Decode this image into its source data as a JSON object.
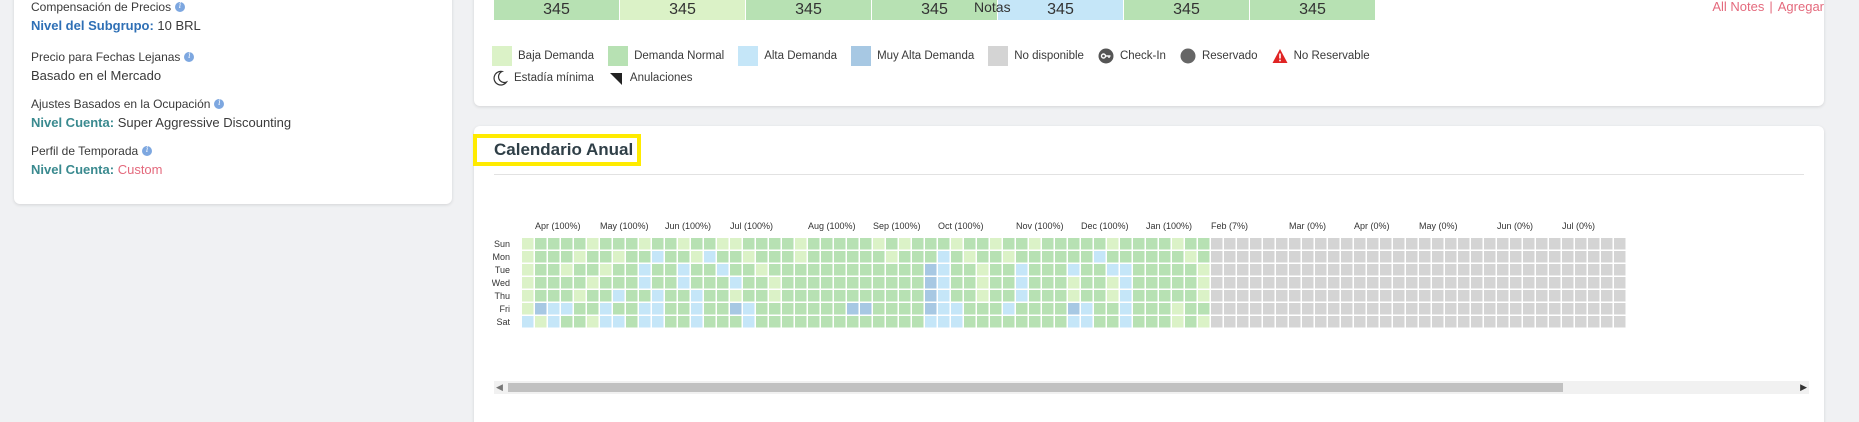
{
  "settings": {
    "comp": {
      "title": "Compensación de Precios",
      "level": "Nivel del Subgrupo:",
      "value": "10 BRL"
    },
    "far": {
      "title": "Precio para Fechas Lejanas",
      "value": "Basado en el Mercado"
    },
    "occ": {
      "title": "Ajustes Basados en la Ocupación",
      "level": "Nivel Cuenta:",
      "value": "Super Aggressive Discounting"
    },
    "season": {
      "title": "Perfil de Temporada",
      "level": "Nivel Cuenta:",
      "value": "Custom"
    }
  },
  "colors": {
    "low": "#dbf2c7",
    "normal": "#b7e1b3",
    "high": "#c5e6f8",
    "very_high": "#a7c8e3",
    "unavailable": "#d4d4d4",
    "accent_pink": "#e46a7d",
    "title_highlight": "#ffeb00"
  },
  "top_grid": {
    "values": [
      "345",
      "345",
      "345",
      "345",
      "345",
      "345",
      "345"
    ],
    "levels": [
      "normal",
      "low",
      "normal",
      "normal",
      "high",
      "normal",
      "normal"
    ]
  },
  "notes": {
    "label": "Notas",
    "all_link": "All Notes",
    "separator": "|",
    "add_link": "Agregar"
  },
  "legend": {
    "low": "Baja Demanda",
    "normal": "Demanda Normal",
    "high": "Alta Demanda",
    "very_high": "Muy Alta Demanda",
    "unavailable": "No disponible",
    "checkin": "Check-In",
    "reserved": "Reservado",
    "not_reservable": "No Reservable",
    "min_stay": "Estadía mínima",
    "cancellations": "Anulaciones",
    "icons": {
      "checkin": "key-icon",
      "reserved": "filled-circle-icon",
      "not_reservable": "warning-triangle-icon",
      "min_stay": "moon-icon",
      "cancellations": "corner-triangle-icon"
    }
  },
  "calendar": {
    "title": "Calendario Anual",
    "days": [
      "Sun",
      "Mon",
      "Tue",
      "Wed",
      "Thu",
      "Fri",
      "Sat"
    ],
    "months": [
      {
        "label": "Apr (100%)",
        "week": 1
      },
      {
        "label": "May (100%)",
        "week": 6
      },
      {
        "label": "Jun (100%)",
        "week": 11
      },
      {
        "label": "Jul (100%)",
        "week": 16
      },
      {
        "label": "Aug (100%)",
        "week": 22
      },
      {
        "label": "Sep (100%)",
        "week": 27
      },
      {
        "label": "Oct (100%)",
        "week": 32
      },
      {
        "label": "Nov (100%)",
        "week": 38
      },
      {
        "label": "Dec (100%)",
        "week": 43
      },
      {
        "label": "Jan (100%)",
        "week": 48
      },
      {
        "label": "Feb (7%)",
        "week": 53
      },
      {
        "label": "Mar (0%)",
        "week": 59
      },
      {
        "label": "Apr (0%)",
        "week": 64
      },
      {
        "label": "May (0%)",
        "week": 69
      },
      {
        "label": "Jun (0%)",
        "week": 75
      },
      {
        "label": "Jul (0%)",
        "week": 80
      }
    ],
    "weeks": 85,
    "available_weeks": 53,
    "pattern": {
      "Sun": "LNNNNLNNNLNNLNNLLNNNNLNNNNNLNLNNNLNNLNNLNNNNNLNNNNLNN",
      "Mon": "LNNNLNNLNNHNNLHNNLNNNLNNNNNNLNNNHNLNNLNNNNNNHNNNNNNLN",
      "Tue": "LNNLNNLNNHNNHNNHNNLNNNNNNNNNNNNVHNNLNNHNNNHNNHHNNNNNL",
      "Wed": "LNNNNLNNNHNNHNNNHNNLNNNNNNNNNNNVHNNLNNHNNNLNNLHNNNNNL",
      "Thu": "LNNNLNNHNNHNNHNNLNNLNNNNNNNNNNNVHNNLNNHNNNLNNLHNNNNNL",
      "Fri": "LVHHNNHNNHHNNHNNVHNNNNNNNVVNNNNVHHNNNHNNNNVHNNHNNNLNN",
      "Sat": "HLHNNLHHNHHNNHNNNHNNNNNNNNNNNNNHHHNNNNNNNNHHNNHNNNLNL"
    }
  }
}
